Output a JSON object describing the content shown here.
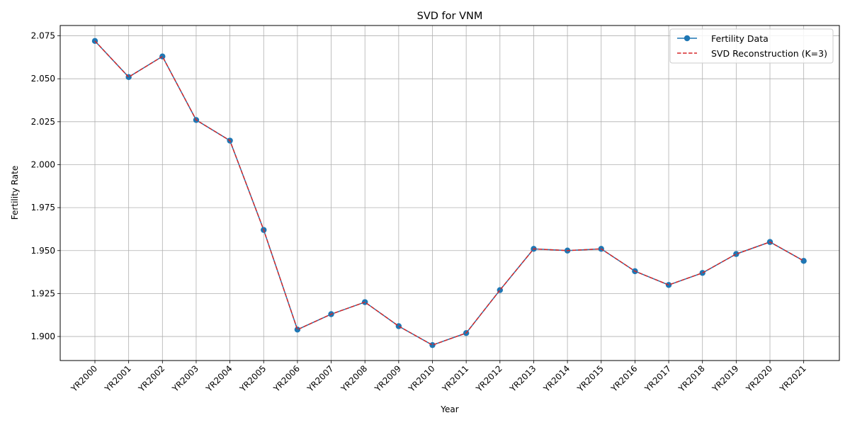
{
  "chart_data": {
    "type": "line",
    "title": "SVD for VNM",
    "xlabel": "Year",
    "ylabel": "Fertility Rate",
    "categories": [
      "YR2000",
      "YR2001",
      "YR2002",
      "YR2003",
      "YR2004",
      "YR2005",
      "YR2006",
      "YR2007",
      "YR2008",
      "YR2009",
      "YR2010",
      "YR2011",
      "YR2012",
      "YR2013",
      "YR2014",
      "YR2015",
      "YR2016",
      "YR2017",
      "YR2018",
      "YR2019",
      "YR2020",
      "YR2021"
    ],
    "series": [
      {
        "name": "Fertility Data",
        "color": "#1f77b4",
        "style": "solid-with-circle-markers",
        "values": [
          2.072,
          2.051,
          2.063,
          2.026,
          2.014,
          1.962,
          1.904,
          1.913,
          1.92,
          1.906,
          1.895,
          1.902,
          1.927,
          1.951,
          1.95,
          1.951,
          1.938,
          1.93,
          1.937,
          1.948,
          1.955,
          1.944
        ]
      },
      {
        "name": "SVD Reconstruction (K=3)",
        "color": "#d62728",
        "style": "dashed",
        "values": [
          2.072,
          2.051,
          2.063,
          2.026,
          2.014,
          1.962,
          1.904,
          1.913,
          1.92,
          1.906,
          1.895,
          1.902,
          1.927,
          1.951,
          1.95,
          1.951,
          1.938,
          1.93,
          1.937,
          1.948,
          1.955,
          1.944
        ]
      }
    ],
    "ylim": [
      1.886,
      2.081
    ],
    "yticks": [
      "1.900",
      "1.925",
      "1.950",
      "1.975",
      "2.000",
      "2.025",
      "2.050",
      "2.075"
    ],
    "grid": true,
    "legend_position": "top-right"
  }
}
